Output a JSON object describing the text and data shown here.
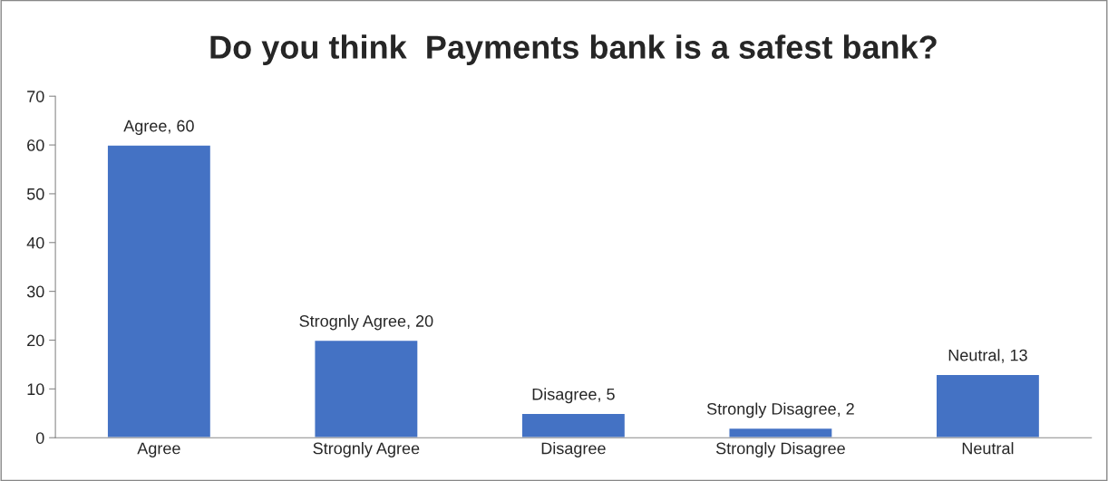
{
  "chart_data": {
    "type": "bar",
    "title": "Do you think  Payments bank is a safest bank?",
    "categories": [
      "Agree",
      "Strognly Agree",
      "Disagree",
      "Strongly Disagree",
      "Neutral"
    ],
    "values": [
      60,
      20,
      5,
      2,
      13
    ],
    "value_labels": [
      "Agree, 60",
      "Strognly Agree, 20",
      "Disagree, 5",
      "Strongly Disagree, 2",
      "Neutral, 13"
    ],
    "color": "#4472c4",
    "ylim": [
      0,
      70
    ],
    "yticks": [
      0,
      10,
      20,
      30,
      40,
      50,
      60,
      70
    ],
    "grid": false,
    "legend": false
  }
}
